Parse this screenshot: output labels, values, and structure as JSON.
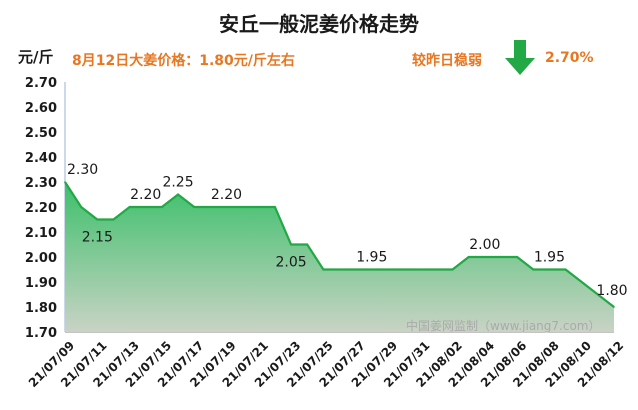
{
  "header": {
    "title": "安丘一般泥姜价格走势",
    "unit": "元/斤",
    "price_note": "8月12日大姜价格：1.80元/斤左右",
    "trend_label": "较昨日稳弱",
    "trend_pct": "2.70%",
    "trend_icon": "down-arrow-icon",
    "trend_color": "#22a845"
  },
  "watermark": "中国姜网监制（www.jiang7.com）",
  "chart_data": {
    "type": "area",
    "title": "安丘一般泥姜价格走势",
    "ylabel": "元/斤",
    "ylim": [
      1.7,
      2.7
    ],
    "yticks": [
      "1.70",
      "1.80",
      "1.90",
      "2.00",
      "2.10",
      "2.20",
      "2.30",
      "2.40",
      "2.50",
      "2.60",
      "2.70"
    ],
    "xtick_labels": [
      "21/07/09",
      "21/07/11",
      "21/07/13",
      "21/07/15",
      "21/07/17",
      "21/07/19",
      "21/07/21",
      "21/07/23",
      "21/07/25",
      "21/07/27",
      "21/07/29",
      "21/07/31",
      "21/08/02",
      "21/08/04",
      "21/08/06",
      "21/08/08",
      "21/08/10",
      "21/08/12"
    ],
    "x": [
      "21/07/09",
      "21/07/10",
      "21/07/11",
      "21/07/12",
      "21/07/13",
      "21/07/14",
      "21/07/15",
      "21/07/16",
      "21/07/17",
      "21/07/18",
      "21/07/19",
      "21/07/20",
      "21/07/21",
      "21/07/22",
      "21/07/23",
      "21/07/24",
      "21/07/25",
      "21/07/26",
      "21/07/27",
      "21/07/28",
      "21/07/29",
      "21/07/30",
      "21/07/31",
      "21/08/01",
      "21/08/02",
      "21/08/03",
      "21/08/04",
      "21/08/05",
      "21/08/06",
      "21/08/07",
      "21/08/08",
      "21/08/09",
      "21/08/10",
      "21/08/11",
      "21/08/12"
    ],
    "values": [
      2.3,
      2.2,
      2.15,
      2.15,
      2.2,
      2.2,
      2.2,
      2.25,
      2.2,
      2.2,
      2.2,
      2.2,
      2.2,
      2.2,
      2.05,
      2.05,
      1.95,
      1.95,
      1.95,
      1.95,
      1.95,
      1.95,
      1.95,
      1.95,
      1.95,
      2.0,
      2.0,
      2.0,
      2.0,
      1.95,
      1.95,
      1.95,
      1.9,
      1.85,
      1.8
    ],
    "data_labels": [
      {
        "index": 0,
        "text": "2.30"
      },
      {
        "index": 2,
        "text": "2.15"
      },
      {
        "index": 5,
        "text": "2.20"
      },
      {
        "index": 7,
        "text": "2.25"
      },
      {
        "index": 10,
        "text": "2.20"
      },
      {
        "index": 14,
        "text": "2.05"
      },
      {
        "index": 19,
        "text": "1.95"
      },
      {
        "index": 26,
        "text": "2.00"
      },
      {
        "index": 30,
        "text": "1.95"
      },
      {
        "index": 34,
        "text": "1.80"
      }
    ],
    "colors": {
      "line": "#22a845",
      "fill_top": "#3cc06a",
      "fill_bottom": "#c9d3c5"
    },
    "grid": false
  }
}
